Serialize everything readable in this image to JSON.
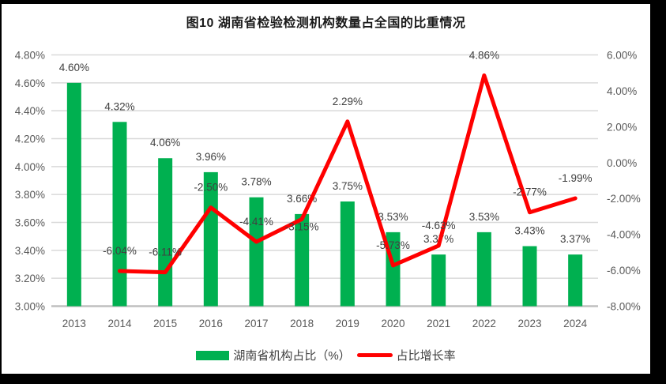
{
  "chart_data": {
    "type": "bar",
    "combo": "bar+line",
    "title": "图10  湖南省检验检测机构数量占全国的比重情况",
    "categories": [
      "2013",
      "2014",
      "2015",
      "2016",
      "2017",
      "2018",
      "2019",
      "2020",
      "2021",
      "2022",
      "2023",
      "2024"
    ],
    "series": [
      {
        "name": "湖南省机构占比（%）",
        "type": "bar",
        "axis": "left",
        "color": "#00B050",
        "values": [
          4.6,
          4.32,
          4.06,
          3.96,
          3.78,
          3.66,
          3.75,
          3.53,
          3.37,
          3.53,
          3.43,
          3.37
        ]
      },
      {
        "name": "占比增长率",
        "type": "line",
        "axis": "right",
        "color": "#FF0000",
        "values": [
          null,
          -6.04,
          -6.11,
          -2.5,
          -4.41,
          -3.15,
          2.29,
          -5.73,
          -4.63,
          4.86,
          -2.77,
          -1.99
        ],
        "label_below_years": [
          "2018"
        ]
      }
    ],
    "left_axis": {
      "min": 3.0,
      "max": 4.8,
      "step": 0.2,
      "tick_format": "0.00%"
    },
    "right_axis": {
      "min": -8.0,
      "max": 6.0,
      "step": 2.0,
      "tick_format": "0.00%"
    },
    "grid": true,
    "legend_position": "bottom"
  },
  "style": {
    "bar_color": "#00B050",
    "line_color": "#FF0000",
    "gridline_color": "#D9D9D9",
    "axis_line_color": "#BFBFBF",
    "tick_text_color": "#595959",
    "data_label_color": "#404040"
  }
}
